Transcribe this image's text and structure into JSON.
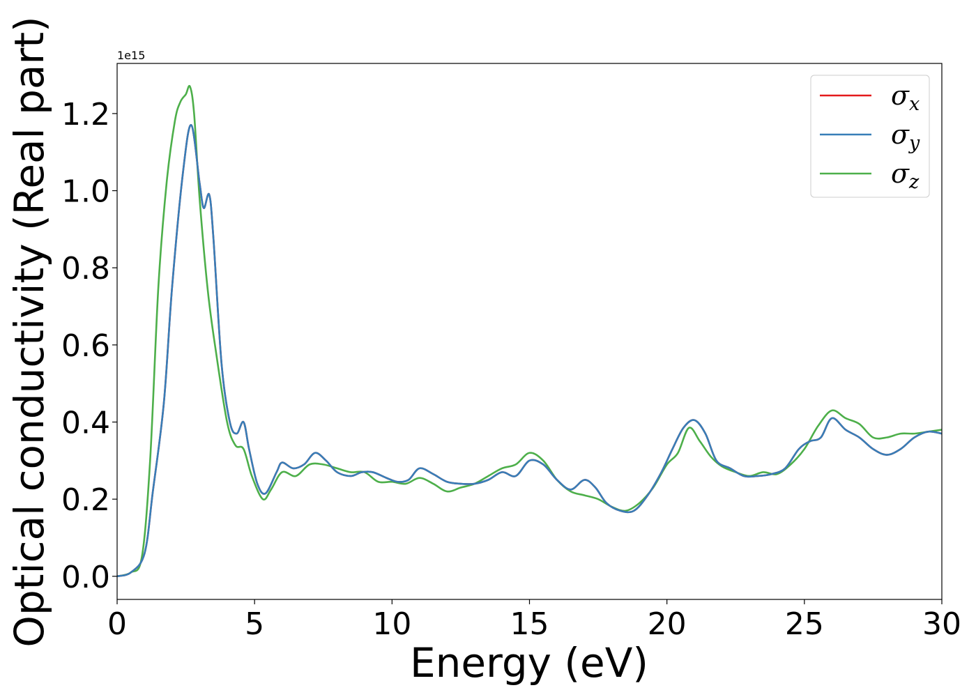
{
  "chart_data": {
    "type": "line",
    "xlabel": "Energy (eV)",
    "ylabel": "Optical conductivity (Real part)",
    "offset_text": "1e15",
    "xlim": [
      0,
      30
    ],
    "ylim": [
      -0.06,
      1.33
    ],
    "x_ticks": [
      0,
      5,
      10,
      15,
      20,
      25,
      30
    ],
    "x_tick_labels": [
      "0",
      "5",
      "10",
      "15",
      "20",
      "25",
      "30"
    ],
    "y_ticks": [
      0.0,
      0.2,
      0.4,
      0.6,
      0.8,
      1.0,
      1.2
    ],
    "y_tick_labels": [
      "0.0",
      "0.2",
      "0.4",
      "0.6",
      "0.8",
      "1.0",
      "1.2"
    ],
    "grid": false,
    "legend_position": "top-right",
    "series": [
      {
        "name": "σx",
        "symbol": "σ",
        "subscript": "x",
        "color": "#e41a1c",
        "x": [
          0,
          0.5,
          1.0,
          1.3,
          1.7,
          2.0,
          2.4,
          2.7,
          3.0,
          3.15,
          3.35,
          3.5,
          3.8,
          4.1,
          4.35,
          4.6,
          4.8,
          5.1,
          5.4,
          5.8,
          6.0,
          6.4,
          6.8,
          7.2,
          7.6,
          8.0,
          8.5,
          8.9,
          9.3,
          9.8,
          10.2,
          10.6,
          11.0,
          11.5,
          12.0,
          12.5,
          13.0,
          13.5,
          14.0,
          14.5,
          15.0,
          15.5,
          16.0,
          16.5,
          17.0,
          17.4,
          17.8,
          18.3,
          18.8,
          19.3,
          19.8,
          20.2,
          20.6,
          21.0,
          21.4,
          21.8,
          22.3,
          22.8,
          23.3,
          23.8,
          24.3,
          24.8,
          25.2,
          25.6,
          26.0,
          26.5,
          27.0,
          27.5,
          28.0,
          28.5,
          29.0,
          29.5,
          30.0
        ],
        "y": [
          0.0,
          0.01,
          0.06,
          0.22,
          0.45,
          0.75,
          1.05,
          1.17,
          1.02,
          0.955,
          0.99,
          0.88,
          0.55,
          0.4,
          0.37,
          0.4,
          0.33,
          0.24,
          0.215,
          0.27,
          0.295,
          0.28,
          0.29,
          0.32,
          0.3,
          0.27,
          0.26,
          0.27,
          0.27,
          0.255,
          0.245,
          0.25,
          0.28,
          0.265,
          0.245,
          0.24,
          0.24,
          0.25,
          0.27,
          0.26,
          0.3,
          0.29,
          0.25,
          0.225,
          0.25,
          0.23,
          0.19,
          0.17,
          0.17,
          0.21,
          0.27,
          0.33,
          0.385,
          0.405,
          0.37,
          0.3,
          0.28,
          0.26,
          0.26,
          0.265,
          0.28,
          0.33,
          0.35,
          0.36,
          0.41,
          0.38,
          0.36,
          0.33,
          0.315,
          0.33,
          0.36,
          0.375,
          0.37
        ]
      },
      {
        "name": "σy",
        "symbol": "σ",
        "subscript": "y",
        "color": "#377eb8",
        "x": [
          0,
          0.5,
          1.0,
          1.3,
          1.7,
          2.0,
          2.4,
          2.7,
          3.0,
          3.15,
          3.35,
          3.5,
          3.8,
          4.1,
          4.35,
          4.6,
          4.8,
          5.1,
          5.4,
          5.8,
          6.0,
          6.4,
          6.8,
          7.2,
          7.6,
          8.0,
          8.5,
          8.9,
          9.3,
          9.8,
          10.2,
          10.6,
          11.0,
          11.5,
          12.0,
          12.5,
          13.0,
          13.5,
          14.0,
          14.5,
          15.0,
          15.5,
          16.0,
          16.5,
          17.0,
          17.4,
          17.8,
          18.3,
          18.8,
          19.3,
          19.8,
          20.2,
          20.6,
          21.0,
          21.4,
          21.8,
          22.3,
          22.8,
          23.3,
          23.8,
          24.3,
          24.8,
          25.2,
          25.6,
          26.0,
          26.5,
          27.0,
          27.5,
          28.0,
          28.5,
          29.0,
          29.5,
          30.0
        ],
        "y": [
          0.0,
          0.01,
          0.06,
          0.22,
          0.45,
          0.75,
          1.05,
          1.17,
          1.02,
          0.955,
          0.99,
          0.88,
          0.55,
          0.4,
          0.37,
          0.4,
          0.33,
          0.24,
          0.215,
          0.27,
          0.295,
          0.28,
          0.29,
          0.32,
          0.3,
          0.27,
          0.26,
          0.27,
          0.27,
          0.255,
          0.245,
          0.25,
          0.28,
          0.265,
          0.245,
          0.24,
          0.24,
          0.25,
          0.27,
          0.26,
          0.3,
          0.29,
          0.25,
          0.225,
          0.25,
          0.23,
          0.19,
          0.17,
          0.17,
          0.21,
          0.27,
          0.33,
          0.385,
          0.405,
          0.37,
          0.3,
          0.28,
          0.26,
          0.26,
          0.265,
          0.28,
          0.33,
          0.35,
          0.36,
          0.41,
          0.38,
          0.36,
          0.33,
          0.315,
          0.33,
          0.36,
          0.375,
          0.37
        ]
      },
      {
        "name": "σz",
        "symbol": "σ",
        "subscript": "z",
        "color": "#4daf4a",
        "x": [
          0,
          0.5,
          0.9,
          1.2,
          1.5,
          1.8,
          2.1,
          2.3,
          2.5,
          2.65,
          2.8,
          3.0,
          3.3,
          3.6,
          4.0,
          4.3,
          4.6,
          4.9,
          5.3,
          5.6,
          6.0,
          6.5,
          7.0,
          7.5,
          8.0,
          8.5,
          9.0,
          9.5,
          10.0,
          10.5,
          11.0,
          11.5,
          12.0,
          12.5,
          13.0,
          13.5,
          14.0,
          14.5,
          15.0,
          15.5,
          16.0,
          16.5,
          17.0,
          17.5,
          18.0,
          18.5,
          19.0,
          19.5,
          20.0,
          20.4,
          20.8,
          21.2,
          21.6,
          22.0,
          22.5,
          23.0,
          23.5,
          24.0,
          24.5,
          25.0,
          25.5,
          26.0,
          26.5,
          27.0,
          27.5,
          28.0,
          28.5,
          29.0,
          29.5,
          30.0
        ],
        "y": [
          0.0,
          0.01,
          0.05,
          0.3,
          0.75,
          1.02,
          1.18,
          1.23,
          1.25,
          1.27,
          1.2,
          0.98,
          0.74,
          0.58,
          0.4,
          0.34,
          0.33,
          0.26,
          0.2,
          0.225,
          0.27,
          0.26,
          0.29,
          0.29,
          0.28,
          0.27,
          0.27,
          0.245,
          0.245,
          0.24,
          0.255,
          0.24,
          0.22,
          0.23,
          0.24,
          0.26,
          0.28,
          0.29,
          0.32,
          0.3,
          0.25,
          0.22,
          0.21,
          0.2,
          0.18,
          0.17,
          0.19,
          0.23,
          0.29,
          0.32,
          0.385,
          0.35,
          0.31,
          0.285,
          0.27,
          0.26,
          0.27,
          0.265,
          0.29,
          0.33,
          0.39,
          0.43,
          0.41,
          0.395,
          0.36,
          0.36,
          0.37,
          0.37,
          0.375,
          0.38
        ]
      }
    ]
  }
}
